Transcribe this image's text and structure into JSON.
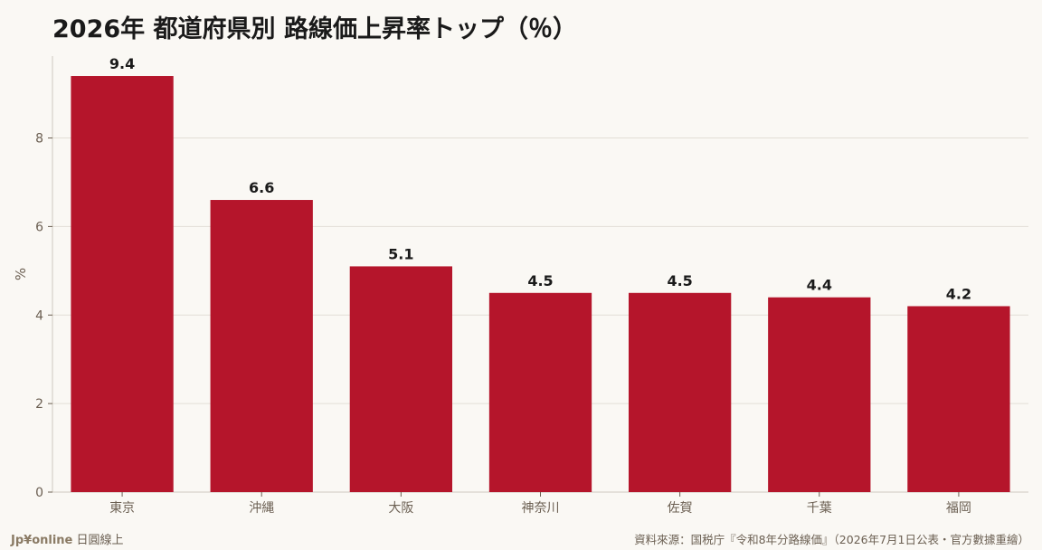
{
  "title": "2026年 都道府県別 路線価上昇率トップ（％）",
  "chart_data": {
    "type": "bar",
    "categories": [
      "東京",
      "沖縄",
      "大阪",
      "神奈川",
      "佐賀",
      "千葉",
      "福岡"
    ],
    "values": [
      9.4,
      6.6,
      5.1,
      4.5,
      4.5,
      4.4,
      4.2
    ],
    "data_labels": [
      "9.4",
      "6.6",
      "5.1",
      "4.5",
      "4.5",
      "4.4",
      "4.2"
    ],
    "ylabel": "%",
    "ylim": [
      0,
      9.85
    ],
    "yticks": [
      0,
      2,
      4,
      6,
      8
    ],
    "grid": true,
    "bar_color": "#b5152b",
    "label_color": "#1a1a1a",
    "axis_text_color": "#6b5f52"
  },
  "footer": {
    "brand_logo": "Jp¥online",
    "brand_text": "日圓線上",
    "source": "資料來源：国税庁『令和8年分路線価』（2026年7月1日公表・官方數據重繪）"
  }
}
